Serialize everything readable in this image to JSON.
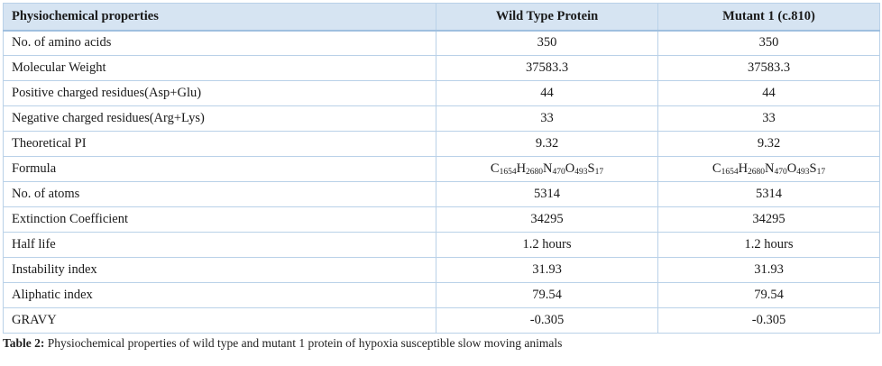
{
  "table": {
    "headers": [
      "Physiochemical properties",
      "Wild Type Protein",
      "Mutant 1 (c.810)"
    ],
    "rows": [
      [
        "No. of amino acids",
        "350",
        "350"
      ],
      [
        "Molecular Weight",
        "37583.3",
        "37583.3"
      ],
      [
        "Positive charged residues(Asp+Glu)",
        "44",
        "44"
      ],
      [
        "Negative charged residues(Arg+Lys)",
        "33",
        "33"
      ],
      [
        "Theoretical PI",
        "9.32",
        "9.32"
      ],
      [
        "Formula",
        "C1654H2680N470O493S17",
        "C1654H2680N470O493S17"
      ],
      [
        "No. of atoms",
        "5314",
        "5314"
      ],
      [
        "Extinction Coefficient",
        "34295",
        "34295"
      ],
      [
        "Half life",
        "1.2 hours",
        "1.2 hours"
      ],
      [
        "Instability index",
        "31.93",
        "31.93"
      ],
      [
        "Aliphatic index",
        "79.54",
        "79.54"
      ],
      [
        "GRAVY",
        "-0.305",
        "-0.305"
      ]
    ]
  },
  "caption": {
    "label": "Table 2:",
    "text": " Physiochemical properties of wild type and mutant 1 protein of hypoxia susceptible slow moving animals"
  },
  "colors": {
    "header_bg": "#d6e4f2",
    "border": "#b9d1e8"
  }
}
